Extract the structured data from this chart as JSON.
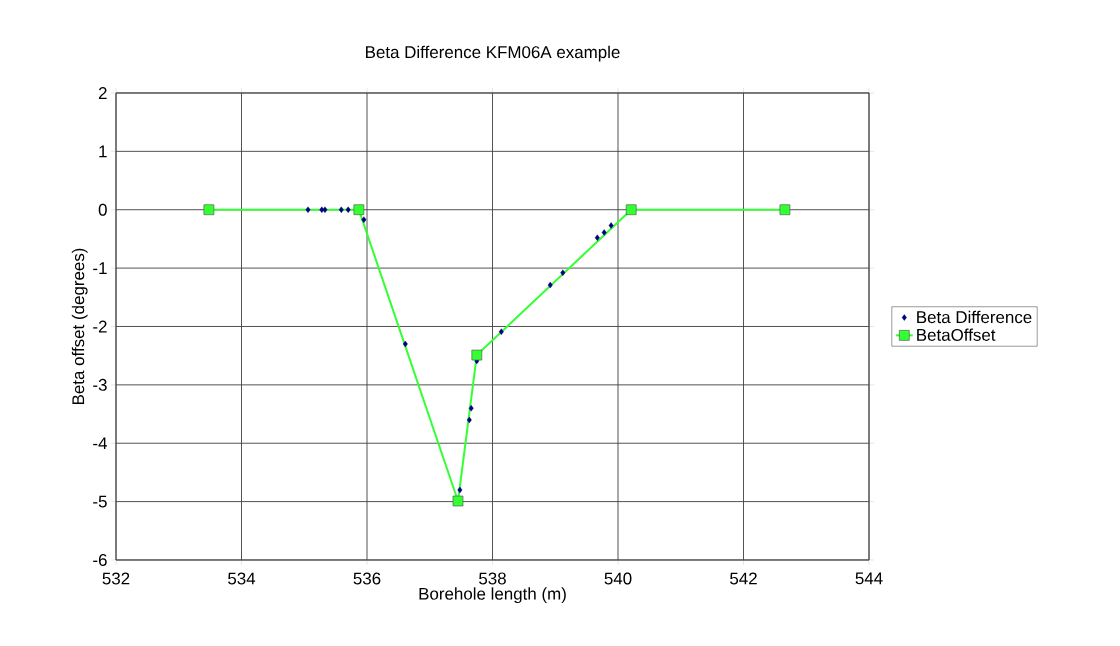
{
  "chart_data": {
    "type": "line",
    "title": "Beta Difference KFM06A example",
    "xlabel": "Borehole length (m)",
    "ylabel": "Beta offset (degrees)",
    "xlim": [
      532,
      544
    ],
    "xticks": [
      532,
      534,
      536,
      538,
      540,
      542,
      544
    ],
    "ylim": [
      -6,
      2
    ],
    "yticks": [
      -6,
      -5,
      -4,
      -3,
      -2,
      -1,
      0,
      1,
      2
    ],
    "grid": true,
    "legend": "right",
    "series": [
      {
        "name": "Beta Difference",
        "type": "scatter",
        "marker": "diamond",
        "color": "#000080",
        "x": [
          535.06,
          535.28,
          535.33,
          535.59,
          535.7,
          535.95,
          536.61,
          537.48,
          537.63,
          537.66,
          537.75,
          538.14,
          538.92,
          539.12,
          539.67,
          539.78,
          539.89
        ],
        "values": [
          0,
          0,
          0,
          0,
          0,
          -0.17,
          -2.3,
          -4.8,
          -3.6,
          -3.4,
          -2.59,
          -2.09,
          -1.29,
          -1.08,
          -0.48,
          -0.39,
          -0.27
        ]
      },
      {
        "name": "BetaOffset",
        "marker": "square",
        "line_style": "solid",
        "color": "#33ff33",
        "x": [
          533.48,
          535.87,
          537.45,
          537.75,
          540.21,
          542.66
        ],
        "values": [
          0,
          0,
          -4.99,
          -2.49,
          0,
          0
        ]
      }
    ]
  }
}
